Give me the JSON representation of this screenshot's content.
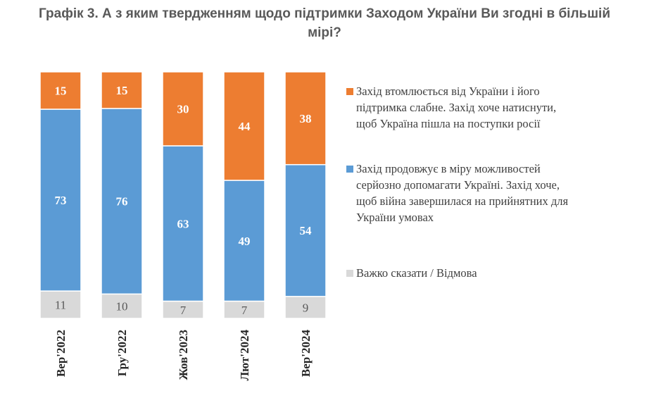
{
  "chart_data": {
    "type": "bar",
    "stacked": true,
    "title_lines": [
      "Графік 3. А з яким твердженням щодо підтримки Заходом України Ви згодні в більшій",
      "мірі?"
    ],
    "categories": [
      "Вер'2022",
      "Гру'2022",
      "Жов'2023",
      "Лют'2024",
      "Вер'2024"
    ],
    "series": [
      {
        "legend_lines": [
          "Важко сказати / Відмова"
        ],
        "color": "#d9d9d9",
        "label_color": "#595959",
        "values": [
          11,
          10,
          7,
          7,
          9
        ]
      },
      {
        "legend_lines": [
          "Захід продовжує в міру можливостей",
          "серйозно допомагати Україні. Захід хоче,",
          "щоб війна завершилася на прийнятних для",
          "України умовах"
        ],
        "color": "#5b9bd5",
        "label_color": "#ffffff",
        "values": [
          73,
          76,
          63,
          49,
          54
        ]
      },
      {
        "legend_lines": [
          "Захід втомлюється від України і його",
          "підтримка слабне. Захід хоче натиснути,",
          "щоб Україна пішла на поступки росії"
        ],
        "color": "#ed7d31",
        "label_color": "#ffffff",
        "values": [
          15,
          15,
          30,
          44,
          38
        ]
      }
    ],
    "legend_order": [
      2,
      1,
      0
    ],
    "legend_position": "right",
    "ylim": [
      0,
      100
    ],
    "grid": false
  }
}
